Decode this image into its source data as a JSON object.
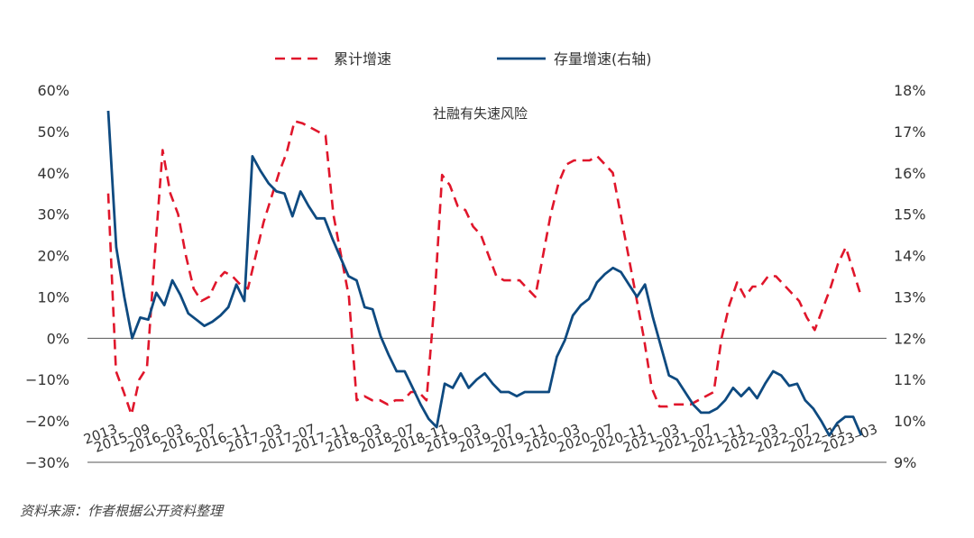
{
  "chart_data": {
    "type": "line",
    "annotation": "社融有失速风险",
    "source": "资料来源：作者根据公开资料整理",
    "left_axis": {
      "min": -30,
      "max": 60,
      "step": 10,
      "ticks": [
        "60%",
        "50%",
        "40%",
        "30%",
        "20%",
        "10%",
        "0%",
        "−10%",
        "−20%",
        "−30%"
      ]
    },
    "right_axis": {
      "min": 9,
      "max": 18,
      "step": 1,
      "ticks": [
        "18%",
        "17%",
        "16%",
        "15%",
        "14%",
        "13%",
        "12%",
        "11%",
        "10%",
        "9%"
      ]
    },
    "x_labels": [
      "2013",
      "2015–09",
      "2016–03",
      "2016–07",
      "2016–11",
      "2017–03",
      "2017–07",
      "2017–11",
      "2018–03",
      "2018–07",
      "2018–11",
      "2019–03",
      "2019–07",
      "2019–11",
      "2020–03",
      "2020–07",
      "2020–11",
      "2021–03",
      "2021–07",
      "2021–11",
      "2022–03",
      "2022–07",
      "2022–11",
      "2023–03"
    ],
    "legend_position": "top-center",
    "series": [
      {
        "name": "累计增速",
        "axis": "left",
        "style": "dashed",
        "color": "#e0162b",
        "values": [
          35,
          -8,
          -13,
          -18.5,
          -10,
          -7,
          20,
          45.5,
          35,
          30,
          20,
          12,
          9,
          10,
          14,
          16,
          15,
          13,
          12,
          20,
          28,
          34,
          40,
          45,
          52.5,
          52,
          51,
          50,
          49,
          30,
          20,
          10,
          -15,
          -14,
          -15,
          -15,
          -16,
          -15,
          -15,
          -13,
          -13,
          -15,
          8,
          39.5,
          37,
          32,
          31,
          27,
          25,
          20,
          15,
          14,
          14,
          14,
          12,
          10,
          20,
          30,
          37.5,
          42,
          43,
          43,
          43,
          44,
          42,
          40,
          30,
          20,
          10,
          0,
          -12,
          -16.5,
          -16.5,
          -16,
          -16,
          -16,
          -15,
          -14,
          -13,
          0,
          8,
          13.5,
          10,
          12.5,
          12.5,
          15,
          15,
          13,
          11,
          9,
          5,
          2,
          7,
          12,
          18,
          22,
          16,
          10
        ]
      },
      {
        "name": "存量增速(右轴)",
        "axis": "right",
        "style": "solid",
        "color": "#0e4a80",
        "values": [
          17.5,
          14.2,
          13,
          12,
          12.5,
          12.45,
          13.1,
          12.8,
          13.4,
          13.05,
          12.6,
          12.45,
          12.3,
          12.4,
          12.55,
          12.75,
          13.3,
          12.9,
          16.4,
          16.05,
          15.75,
          15.55,
          15.5,
          14.95,
          15.55,
          15.2,
          14.9,
          14.9,
          14.4,
          13.95,
          13.5,
          13.4,
          12.75,
          12.7,
          12.05,
          11.6,
          11.2,
          11.2,
          10.8,
          10.4,
          10.05,
          9.85,
          10.9,
          10.8,
          11.15,
          10.8,
          11,
          11.15,
          10.9,
          10.7,
          10.7,
          10.6,
          10.7,
          10.7,
          10.7,
          10.7,
          11.55,
          11.95,
          12.55,
          12.8,
          12.95,
          13.35,
          13.55,
          13.7,
          13.6,
          13.3,
          13,
          13.3,
          12.5,
          11.8,
          11.1,
          11.0,
          10.7,
          10.4,
          10.2,
          10.2,
          10.3,
          10.5,
          10.8,
          10.6,
          10.8,
          10.55,
          10.9,
          11.2,
          11.1,
          10.85,
          10.9,
          10.5,
          10.3,
          10,
          9.65,
          9.95,
          10.1,
          10.1,
          9.65
        ]
      }
    ],
    "grid": false
  }
}
